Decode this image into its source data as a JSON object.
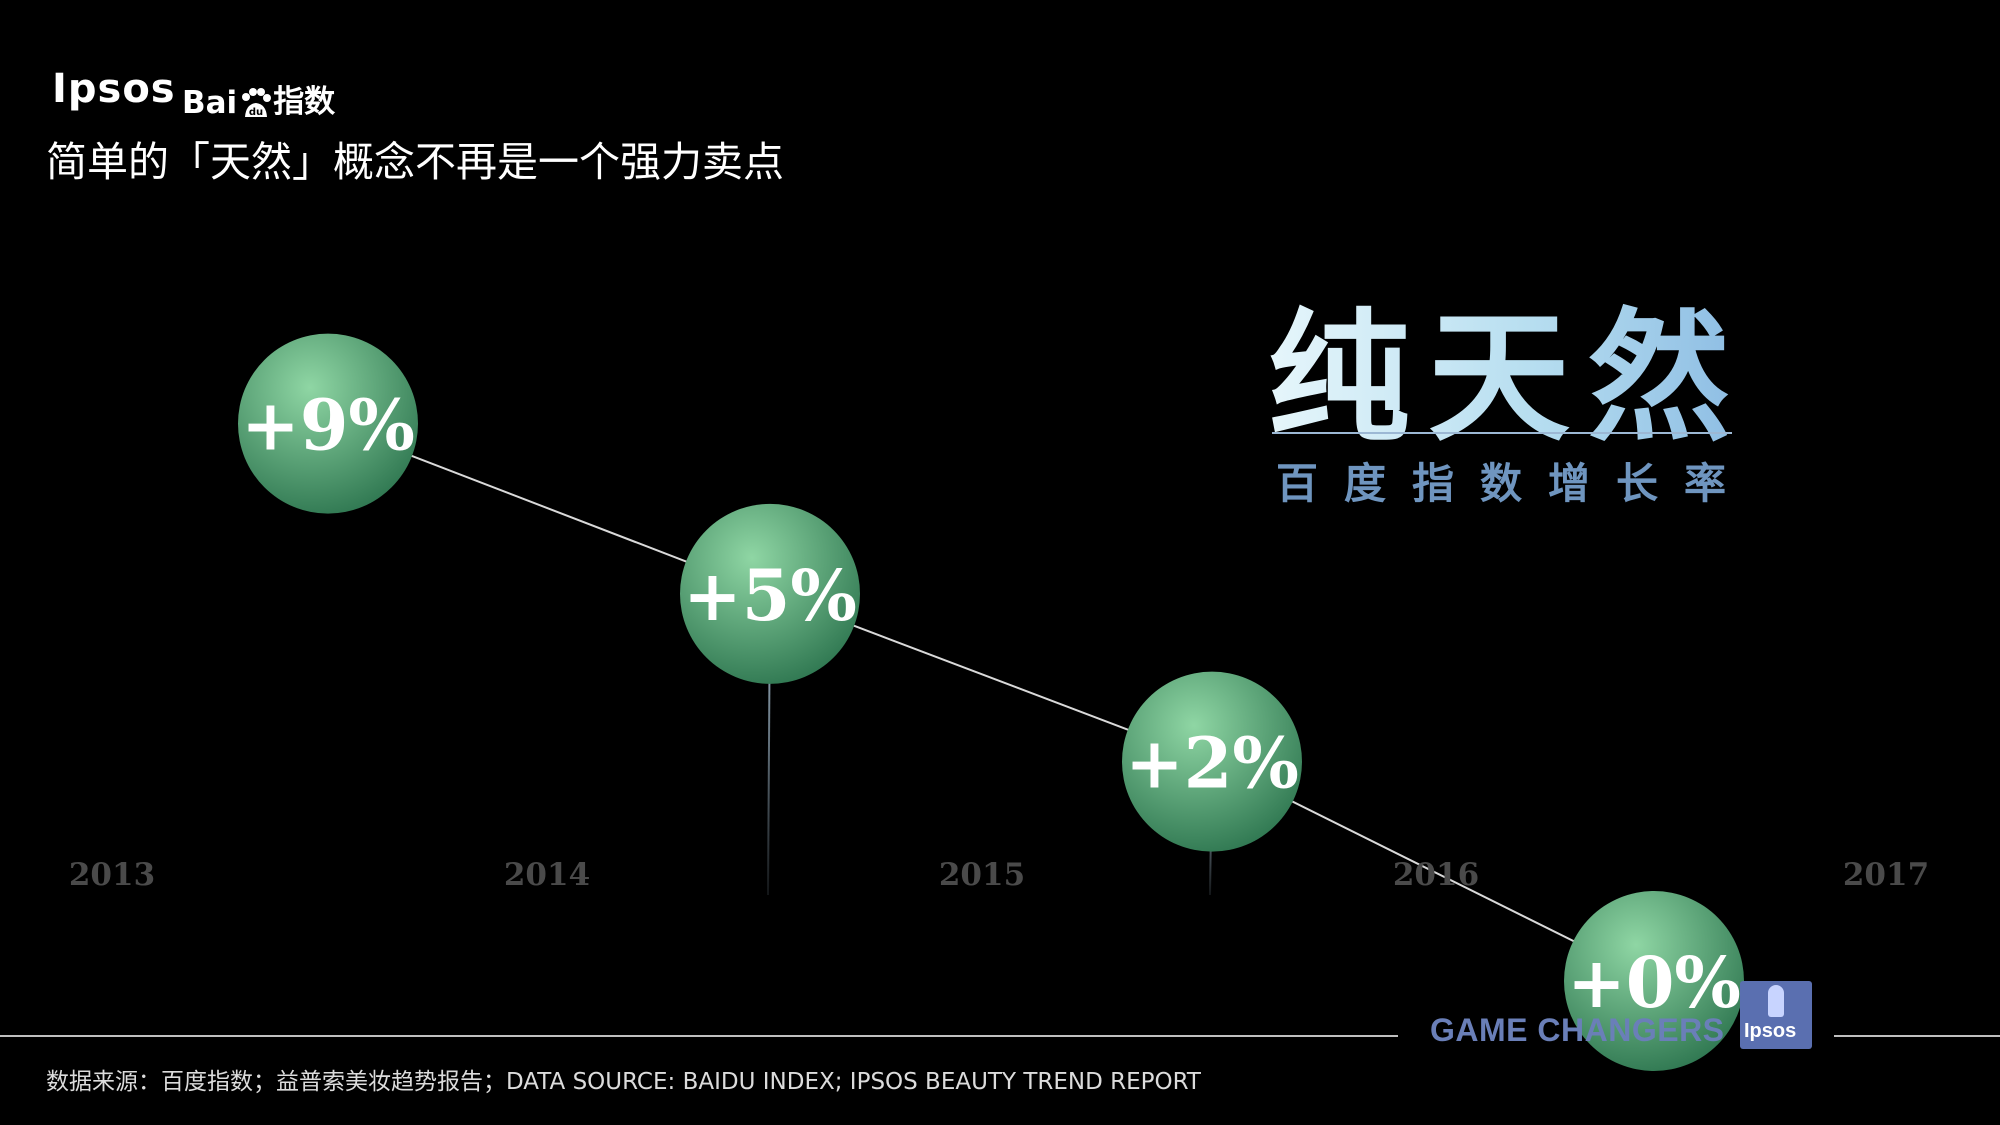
{
  "header": {
    "brand_ipsos": "Ipsos",
    "brand_baidu_left": "Bai",
    "brand_baidu_right": "指数",
    "subtitle": "简单的「天然」概念不再是一个强力卖点"
  },
  "headline": {
    "title": "纯天然",
    "subtitle": "百度指数增长率"
  },
  "colors": {
    "bubble_light": "#8fd6a4",
    "bubble_dark": "#2e7650",
    "year_label": "#4a4a4a",
    "headline_accent": "#8cbce3",
    "brand_purple": "#6a7fb8"
  },
  "chart_data": {
    "type": "line",
    "title": "",
    "xlabel": "",
    "ylabel": "",
    "tick_labels": [
      "2013",
      "2014",
      "2015",
      "2016",
      "2017"
    ],
    "series": [
      {
        "x": [
          "2013-2014",
          "2014-2015",
          "2015-2016",
          "2016-2017"
        ],
        "values": [
          9,
          5,
          2,
          0
        ],
        "labels": [
          "+9%",
          "+5%",
          "+2%",
          "+0%"
        ]
      }
    ],
    "ylim": [
      0,
      10
    ],
    "grid": false,
    "legend": "none"
  },
  "footer": {
    "tagline": "GAME CHANGERS",
    "badge_text": "Ipsos",
    "source": "数据来源：百度指数；益普索美妆趋势报告；DATA SOURCE: BAIDU INDEX; IPSOS BEAUTY TREND REPORT"
  }
}
